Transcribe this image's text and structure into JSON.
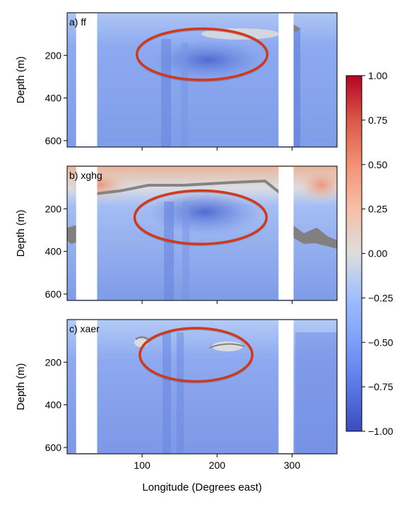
{
  "chart_data": {
    "type": "heatmap",
    "xlabel": "Longitude (Degrees east)",
    "xlim": [
      0,
      360
    ],
    "x_ticks": [
      100,
      200,
      300
    ],
    "x_tick_labels": [
      "100",
      "200",
      "300"
    ],
    "colormap": "coolwarm",
    "colorbar": {
      "vmin": -1.0,
      "vmax": 1.0,
      "ticks": [
        1.0,
        0.75,
        0.5,
        0.25,
        0.0,
        -0.25,
        -0.5,
        -0.75,
        -1.0
      ],
      "tick_labels": [
        "1.00",
        "0.75",
        "0.50",
        "0.25",
        "0.00",
        "−0.25",
        "−0.50",
        "−0.75",
        "−1.00"
      ]
    },
    "panels": [
      {
        "label": "a) ff",
        "ylabel": "Depth (m)",
        "ylim": [
          630,
          0
        ],
        "y_ticks": [
          200,
          400,
          600
        ],
        "y_tick_labels": [
          "200",
          "400",
          "600"
        ],
        "missing_lon_bands": [
          [
            12,
            40
          ],
          [
            282,
            302
          ]
        ],
        "highlight_ellipse": {
          "center_lon": 180,
          "center_depth": 195,
          "half_width_lon": 87,
          "half_depth": 120
        }
      },
      {
        "label": "b) xghg",
        "ylabel": "Depth (m)",
        "ylim": [
          630,
          0
        ],
        "y_ticks": [
          200,
          400,
          600
        ],
        "y_tick_labels": [
          "200",
          "400",
          "600"
        ],
        "missing_lon_bands": [
          [
            12,
            40
          ],
          [
            282,
            302
          ]
        ],
        "highlight_ellipse": {
          "center_lon": 178,
          "center_depth": 240,
          "half_width_lon": 88,
          "half_depth": 125
        }
      },
      {
        "label": "c) xaer",
        "ylabel": "Depth (m)",
        "ylim": [
          630,
          0
        ],
        "y_ticks": [
          200,
          400,
          600
        ],
        "y_tick_labels": [
          "200",
          "400",
          "600"
        ],
        "missing_lon_bands": [
          [
            12,
            40
          ],
          [
            282,
            302
          ]
        ],
        "highlight_ellipse": {
          "center_lon": 172,
          "center_depth": 165,
          "half_width_lon": 75,
          "half_depth": 125
        }
      }
    ],
    "highlight_color": "#d03a1b"
  }
}
